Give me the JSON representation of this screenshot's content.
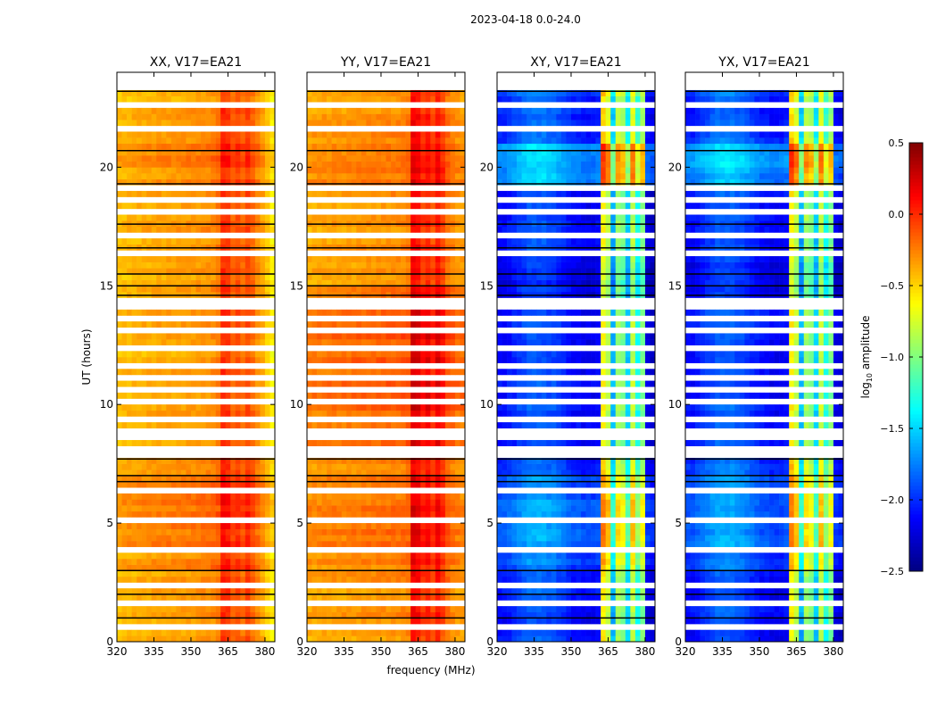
{
  "chart_data": {
    "type": "heatmap",
    "title": "2023-04-18 0.0-24.0",
    "xlabel": "frequency (MHz)",
    "ylabel": "UT (hours)",
    "xlim": [
      320,
      384
    ],
    "ylim": [
      0,
      24
    ],
    "x_ticks": [
      "320",
      "335",
      "350",
      "365",
      "380"
    ],
    "x_tick_values": [
      320,
      335,
      350,
      365,
      380
    ],
    "y_ticks": [
      "0",
      "5",
      "10",
      "15",
      "20"
    ],
    "y_tick_values": [
      0,
      5,
      10,
      15,
      20
    ],
    "data_time_end": 23.25,
    "time_step_hours": 0.25,
    "channel_width_mhz": 2,
    "colorbar": {
      "label_prefix": "log",
      "label_sub": "10",
      "label_suffix": " amplitude",
      "range": [
        -2.5,
        0.5
      ],
      "colormap": "jet",
      "ticks": [
        "0.5",
        "0.0",
        "−0.5",
        "−1.0",
        "−1.5",
        "−2.0",
        "−2.5"
      ],
      "tick_values": [
        0.5,
        0.0,
        -0.5,
        -1.0,
        -1.5,
        -2.0,
        -2.5
      ]
    },
    "flagged_hours": [
      0.5,
      1.5,
      2.25,
      3.75,
      5.0,
      6.25,
      7.75,
      8.0,
      8.5,
      8.75,
      9.25,
      10.0,
      10.5,
      11.0,
      11.5,
      12.25,
      13.0,
      13.5,
      14.0,
      14.25,
      16.25,
      17.0,
      18.0,
      18.5,
      19.0,
      21.5,
      22.5
    ],
    "gap_hours": [
      1.0,
      2.0,
      3.0,
      6.75,
      7.0,
      7.7,
      14.6,
      15.0,
      15.5,
      16.6,
      17.6,
      19.3,
      20.7,
      23.2
    ],
    "panels": [
      {
        "title": "XX, V17=EA21",
        "channel_profile": [
          -0.45,
          -0.44,
          -0.43,
          -0.42,
          -0.41,
          -0.4,
          -0.4,
          -0.39,
          -0.38,
          -0.38,
          -0.37,
          -0.37,
          -0.36,
          -0.36,
          -0.35,
          -0.35,
          -0.34,
          -0.33,
          -0.32,
          -0.3,
          -0.25,
          -0.02,
          -0.05,
          -0.18,
          -0.12,
          -0.2,
          -0.1,
          -0.2,
          -0.3,
          -0.38,
          -0.5,
          -0.6
        ],
        "hourly_offset": [
          0,
          0,
          0.02,
          0.08,
          0.12,
          0.12,
          0.1,
          0.05,
          0,
          0,
          0,
          0,
          0,
          0,
          0,
          0.02,
          0.02,
          0.02,
          0.02,
          0.08,
          0.1,
          0.02,
          0,
          0
        ]
      },
      {
        "title": "YY, V17=EA21",
        "channel_profile": [
          -0.38,
          -0.37,
          -0.37,
          -0.36,
          -0.36,
          -0.35,
          -0.35,
          -0.35,
          -0.34,
          -0.34,
          -0.33,
          -0.33,
          -0.32,
          -0.32,
          -0.32,
          -0.31,
          -0.31,
          -0.3,
          -0.3,
          -0.28,
          -0.25,
          0.12,
          0.08,
          -0.05,
          0.02,
          -0.1,
          0.05,
          -0.08,
          -0.22,
          -0.28,
          -0.33,
          -0.35
        ],
        "hourly_offset": [
          0,
          0,
          0,
          0.05,
          0.1,
          0.1,
          0.08,
          0.05,
          0.12,
          0.15,
          0.2,
          0.15,
          0.18,
          0.2,
          0.12,
          0.02,
          0.02,
          0.02,
          0.02,
          0.1,
          0.12,
          0.02,
          0,
          0
        ]
      },
      {
        "title": "XY, V17=EA21",
        "channel_profile": [
          -2.1,
          -2.1,
          -2.05,
          -2.0,
          -1.95,
          -1.9,
          -1.85,
          -1.85,
          -1.85,
          -1.85,
          -1.9,
          -1.9,
          -1.95,
          -2.0,
          -2.05,
          -2.1,
          -2.1,
          -2.15,
          -2.15,
          -2.15,
          -2.1,
          -0.6,
          -0.8,
          -1.6,
          -0.9,
          -1.0,
          -1.5,
          -0.8,
          -1.3,
          -1.0,
          -2.2,
          -2.25
        ],
        "hourly_offset": [
          0,
          0,
          0,
          0.15,
          0.25,
          0.25,
          0.2,
          0.1,
          0,
          0,
          0,
          0,
          0,
          0,
          -0.1,
          -0.1,
          -0.05,
          0,
          0,
          0.35,
          0.4,
          0.1,
          0.05,
          0.1
        ]
      },
      {
        "title": "YX, V17=EA21",
        "channel_profile": [
          -2.1,
          -2.1,
          -2.05,
          -2.0,
          -1.95,
          -1.9,
          -1.85,
          -1.85,
          -1.85,
          -1.85,
          -1.9,
          -1.9,
          -1.95,
          -2.0,
          -2.05,
          -2.1,
          -2.1,
          -2.15,
          -2.15,
          -2.15,
          -2.1,
          -0.6,
          -0.8,
          -1.6,
          -0.9,
          -1.0,
          -1.5,
          -0.8,
          -1.3,
          -1.0,
          -2.2,
          -2.25
        ],
        "hourly_offset": [
          0,
          0,
          0,
          0.15,
          0.25,
          0.25,
          0.2,
          0.1,
          0,
          0,
          0,
          0,
          0,
          0,
          -0.1,
          -0.1,
          -0.05,
          0,
          0,
          0.35,
          0.4,
          0.1,
          0.05,
          0.1
        ]
      }
    ]
  }
}
